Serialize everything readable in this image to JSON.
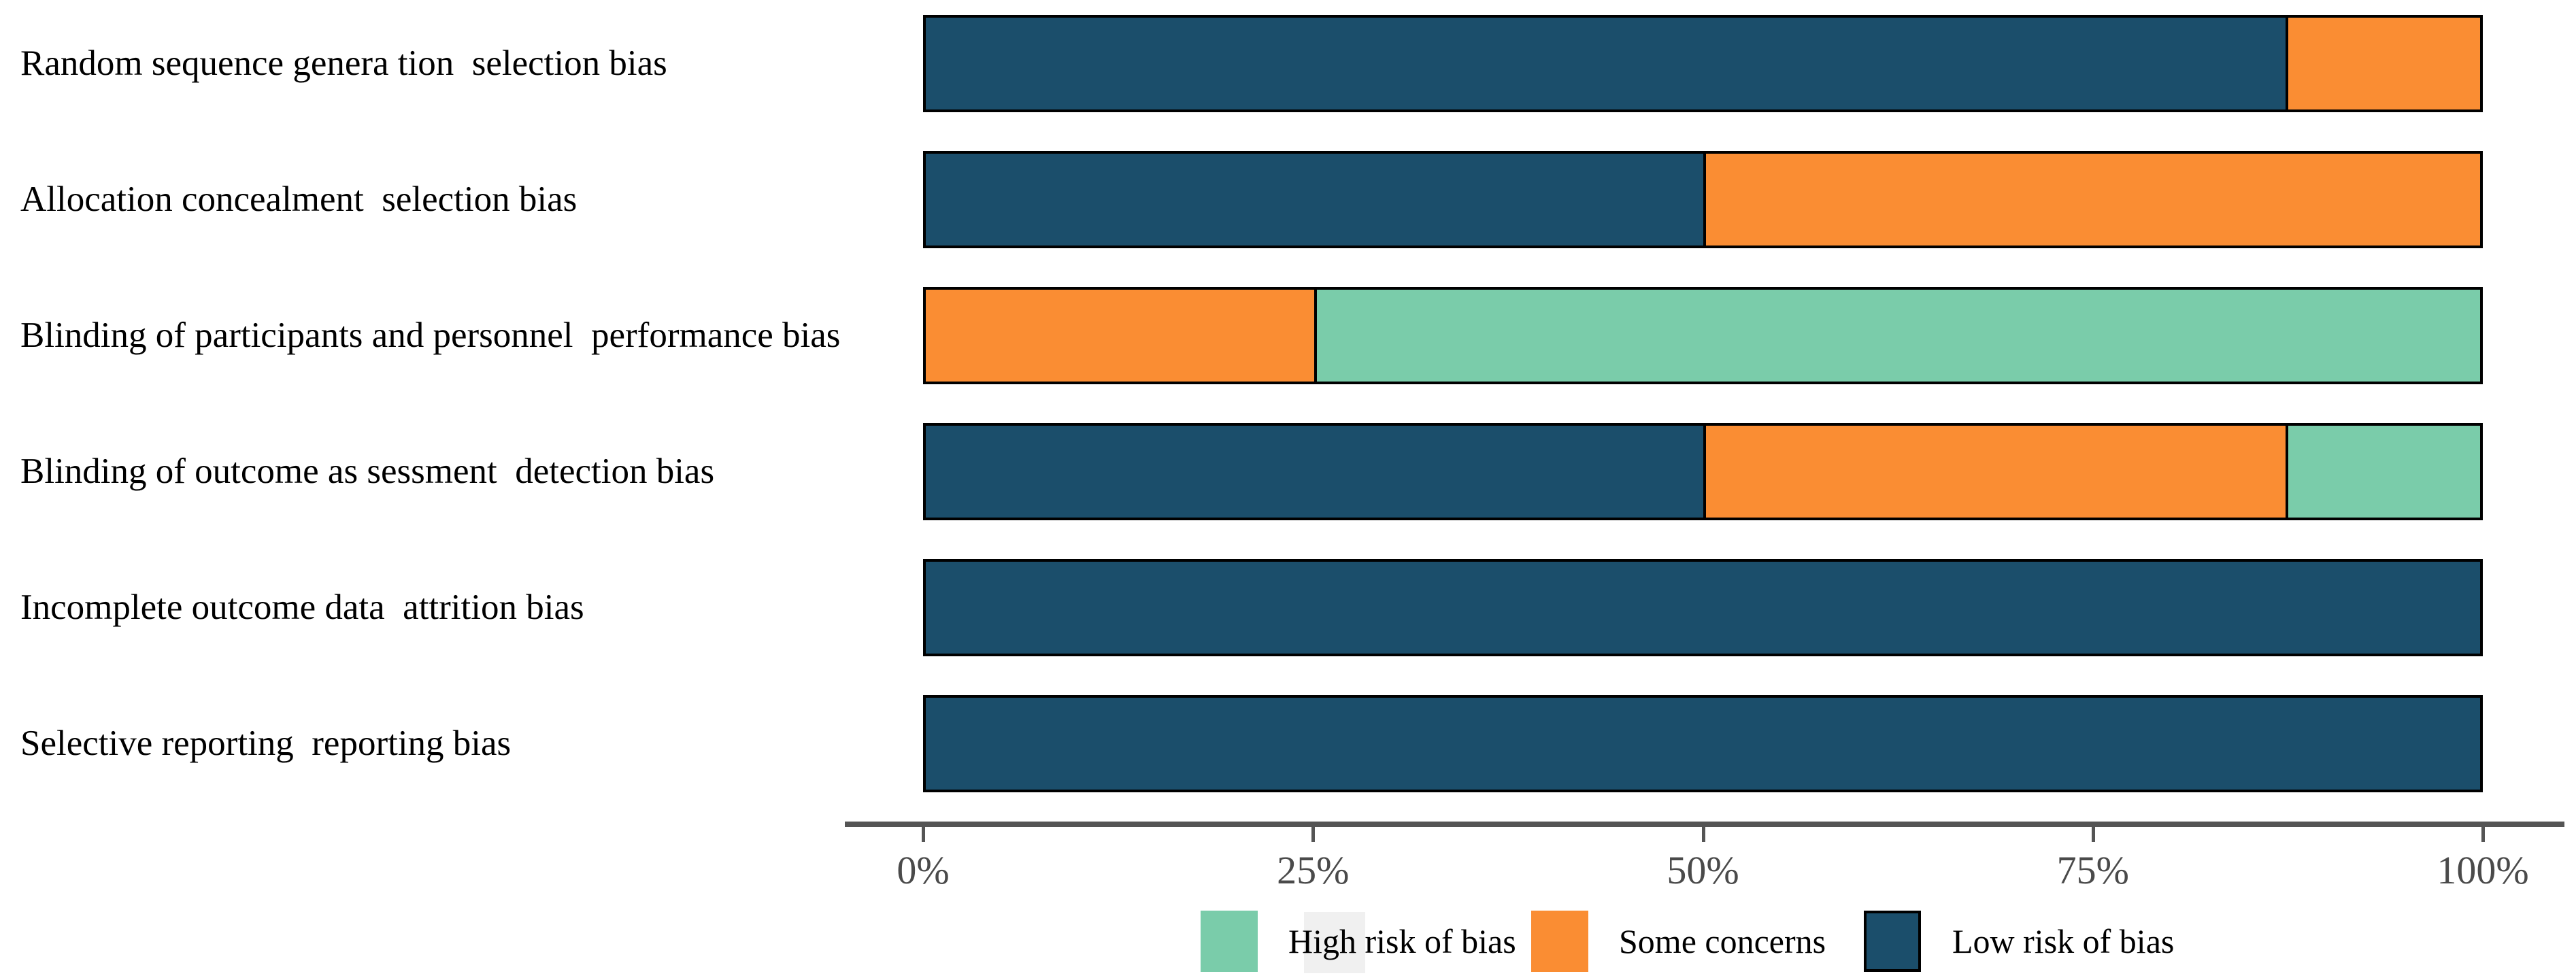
{
  "colors": {
    "low": "#1b4e6b",
    "some": "#fa8d33",
    "high": "#7accaa",
    "bar_border": "#000000",
    "axis": "#555555",
    "tick_label_color": "#4a4a4a",
    "category_label_color": "#000000",
    "legend_key_bg": "#f0f0f0"
  },
  "chart_data": {
    "type": "bar",
    "orientation": "horizontal",
    "stacked": true,
    "unit": "percent",
    "title": "",
    "xlabel": "",
    "ylabel": "",
    "xlim": [
      0,
      100
    ],
    "grid": false,
    "legend_position": "bottom",
    "x_ticks": [
      "0%",
      "25%",
      "50%",
      "75%",
      "100%"
    ],
    "x_tick_values": [
      0,
      25,
      50,
      75,
      100
    ],
    "categories": [
      "Random sequence genera tion  selection bias",
      "Allocation concealment  selection bias",
      "Blinding of participants and personnel  performance bias",
      "Blinding of outcome as sessment  detection bias",
      "Incomplete outcome data  attrition bias",
      "Selective reporting  reporting bias"
    ],
    "series": [
      {
        "name": "Low risk of bias",
        "color_key": "low",
        "values": [
          87.5,
          50,
          0,
          50,
          100,
          100
        ]
      },
      {
        "name": "Some concerns",
        "color_key": "some",
        "values": [
          12.5,
          50,
          25,
          37.5,
          0,
          0
        ]
      },
      {
        "name": "High risk of bias",
        "color_key": "high",
        "values": [
          0,
          0,
          75,
          12.5,
          0,
          0
        ]
      }
    ],
    "legend": [
      {
        "label": "High risk of bias",
        "color_key": "high",
        "bordered": false
      },
      {
        "label": "Some concerns",
        "color_key": "some",
        "bordered": false
      },
      {
        "label": "Low risk of bias",
        "color_key": "low",
        "bordered": true
      }
    ]
  }
}
